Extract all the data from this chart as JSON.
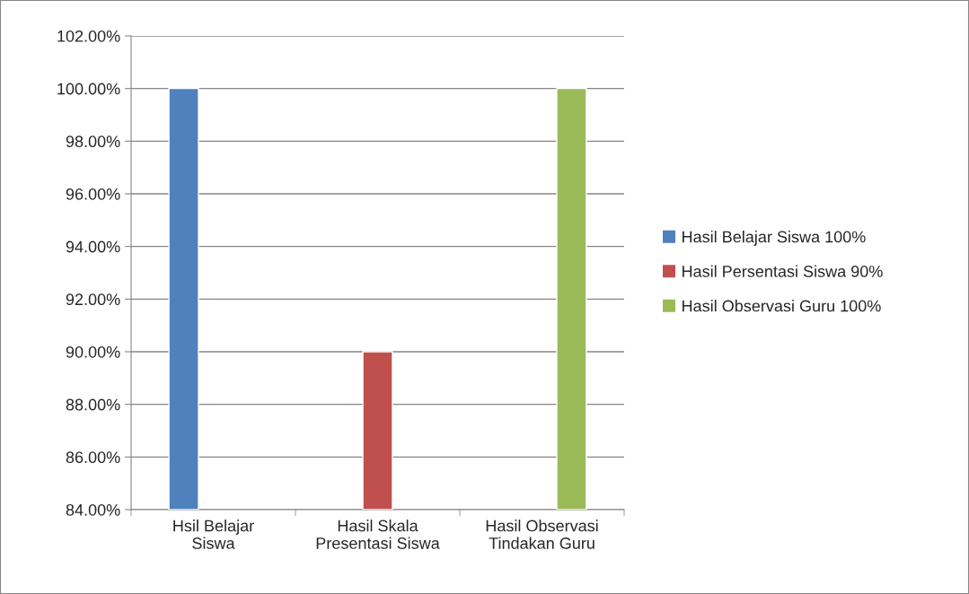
{
  "chart_data": {
    "type": "bar",
    "categories": [
      "Hsil Belajar\nSiswa",
      "Hasil Skala\nPresentasi Siswa",
      "Hasil Observasi\nTindakan Guru"
    ],
    "series": [
      {
        "name": "Hasil Belajar Siswa 100%",
        "color": "#4f81bd",
        "values": [
          100,
          null,
          null
        ]
      },
      {
        "name": "Hasil Persentasi Siswa 90%",
        "color": "#c0504d",
        "values": [
          null,
          90,
          null
        ]
      },
      {
        "name": "Hasil Observasi Guru 100%",
        "color": "#9bbb59",
        "values": [
          null,
          null,
          100
        ]
      }
    ],
    "ylim": [
      84,
      102
    ],
    "yticks": [
      {
        "value": 84,
        "label": "84.00%"
      },
      {
        "value": 86,
        "label": "86.00%"
      },
      {
        "value": 88,
        "label": "88.00%"
      },
      {
        "value": 90,
        "label": "90.00%"
      },
      {
        "value": 92,
        "label": "92.00%"
      },
      {
        "value": 94,
        "label": "94.00%"
      },
      {
        "value": 96,
        "label": "96.00%"
      },
      {
        "value": 98,
        "label": "98.00%"
      },
      {
        "value": 100,
        "label": "100.00%"
      },
      {
        "value": 102,
        "label": "102.00%"
      }
    ],
    "grid": "y",
    "legend": "right"
  }
}
